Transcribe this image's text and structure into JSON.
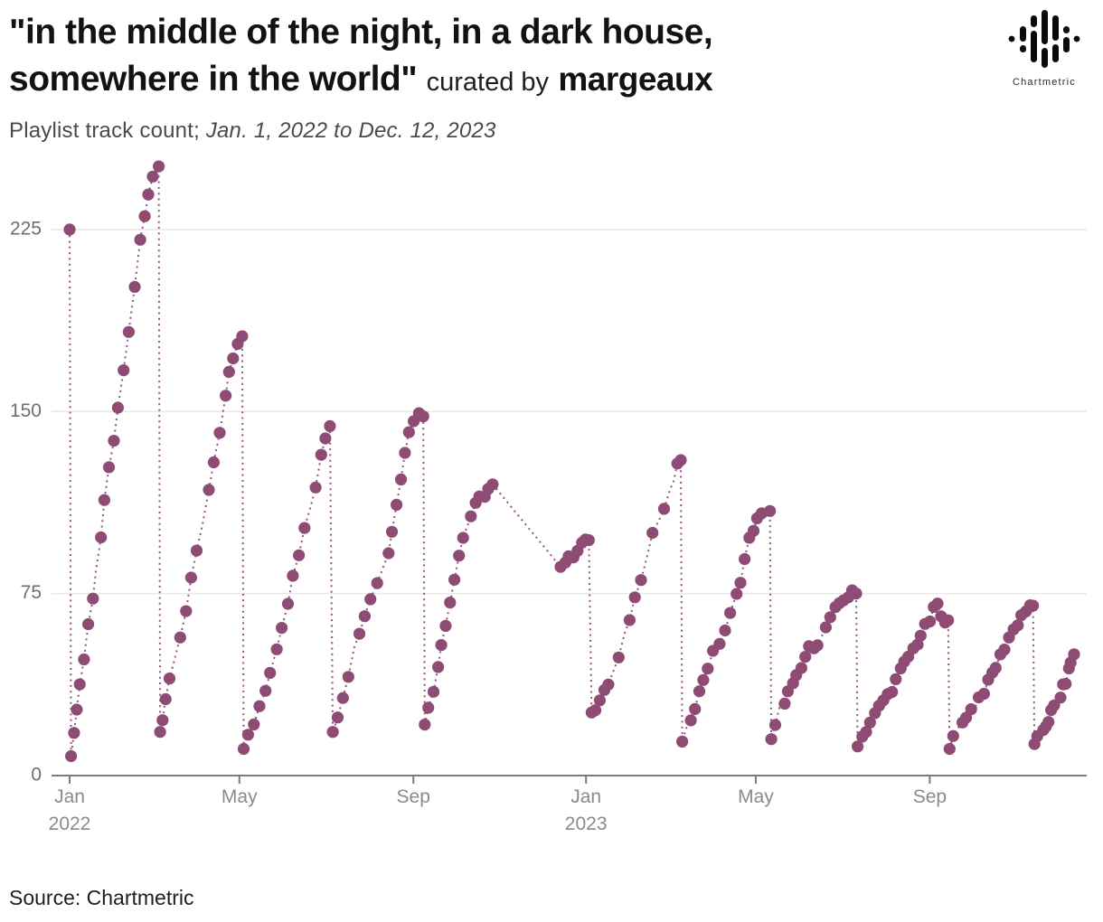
{
  "header": {
    "title_line1": "\"in the middle of the night, in a dark house,",
    "title_line2": "somewhere in the world\"",
    "curated_by": "curated by",
    "curator": "margeaux",
    "subtitle_plain": "Playlist track count; ",
    "subtitle_dates": "Jan. 1, 2022 to Dec. 12, 2023"
  },
  "logo": {
    "label": "Chartmetric"
  },
  "footer": {
    "source": "Source: Chartmetric"
  },
  "chart_data": {
    "type": "scatter",
    "title": "Playlist track count",
    "date_range": [
      "2022-01-01",
      "2023-12-12"
    ],
    "x_unit": "days_since_2022-01-01",
    "point_color": "#8e4c74",
    "grid_color": "#e9e9e9",
    "axis_color": "#7b7b7b",
    "ytick_color": "#6e6e6e",
    "xtick_color": "#8b8b8b",
    "ylim": [
      0,
      255
    ],
    "yticks": [
      0,
      75,
      150,
      225
    ],
    "xticks": [
      {
        "label": "Jan",
        "sub": "2022",
        "day": 0
      },
      {
        "label": "May",
        "day": 120
      },
      {
        "label": "Sep",
        "day": 243
      },
      {
        "label": "Jan",
        "sub": "2023",
        "day": 365
      },
      {
        "label": "May",
        "day": 485
      },
      {
        "label": "Sep",
        "day": 608
      }
    ],
    "segments": [
      {
        "points": [
          [
            0,
            225
          ]
        ]
      },
      {
        "points": [
          [
            1,
            8
          ],
          [
            3,
            19
          ],
          [
            5,
            27
          ],
          [
            7,
            38
          ],
          [
            10,
            48
          ],
          [
            13,
            62
          ],
          [
            16,
            74
          ],
          [
            19,
            85
          ],
          [
            22,
            98
          ],
          [
            25,
            112
          ],
          [
            28,
            126
          ],
          [
            31,
            139
          ],
          [
            34,
            150
          ],
          [
            38,
            166
          ],
          [
            42,
            183
          ],
          [
            46,
            200
          ],
          [
            50,
            221
          ],
          [
            53,
            230
          ],
          [
            56,
            240
          ],
          [
            59,
            246
          ],
          [
            61,
            249
          ],
          [
            63,
            251
          ]
        ]
      },
      {
        "points": [
          [
            64,
            18
          ],
          [
            66,
            24
          ],
          [
            68,
            32
          ],
          [
            71,
            40
          ],
          [
            74,
            48
          ],
          [
            78,
            58
          ],
          [
            82,
            68
          ],
          [
            86,
            80
          ],
          [
            90,
            92
          ],
          [
            94,
            104
          ],
          [
            98,
            118
          ],
          [
            102,
            130
          ],
          [
            106,
            141
          ],
          [
            110,
            155
          ],
          [
            113,
            165
          ],
          [
            116,
            172
          ],
          [
            119,
            177
          ],
          [
            122,
            181
          ]
        ]
      },
      {
        "points": [
          [
            123,
            11
          ],
          [
            126,
            17
          ],
          [
            130,
            22
          ],
          [
            134,
            28
          ],
          [
            138,
            34
          ],
          [
            142,
            43
          ],
          [
            146,
            52
          ],
          [
            150,
            62
          ],
          [
            154,
            72
          ],
          [
            158,
            83
          ],
          [
            162,
            92
          ],
          [
            166,
            101
          ],
          [
            170,
            110
          ],
          [
            174,
            119
          ],
          [
            178,
            131
          ],
          [
            181,
            139
          ],
          [
            184,
            144
          ]
        ]
      },
      {
        "points": [
          [
            186,
            18
          ],
          [
            189,
            25
          ],
          [
            193,
            33
          ],
          [
            197,
            42
          ],
          [
            201,
            52
          ],
          [
            205,
            60
          ],
          [
            209,
            67
          ],
          [
            213,
            74
          ],
          [
            217,
            79
          ],
          [
            221,
            85
          ],
          [
            225,
            92
          ],
          [
            228,
            101
          ],
          [
            231,
            112
          ],
          [
            234,
            122
          ],
          [
            237,
            134
          ],
          [
            240,
            143
          ],
          [
            243,
            147
          ],
          [
            247,
            149
          ],
          [
            250,
            148
          ]
        ]
      },
      {
        "points": [
          [
            251,
            21
          ],
          [
            254,
            29
          ],
          [
            257,
            36
          ],
          [
            260,
            44
          ],
          [
            263,
            54
          ],
          [
            266,
            63
          ],
          [
            269,
            72
          ],
          [
            272,
            82
          ],
          [
            275,
            91
          ],
          [
            278,
            98
          ],
          [
            281,
            103
          ],
          [
            284,
            107
          ],
          [
            287,
            111
          ],
          [
            290,
            114
          ],
          [
            293,
            116
          ],
          [
            296,
            118
          ],
          [
            299,
            120
          ]
        ]
      },
      {
        "points": [
          [
            347,
            86
          ],
          [
            350,
            87
          ],
          [
            353,
            89
          ],
          [
            356,
            91
          ],
          [
            359,
            94
          ],
          [
            362,
            96
          ],
          [
            365,
            98
          ],
          [
            367,
            97
          ]
        ]
      },
      {
        "points": [
          [
            369,
            26
          ],
          [
            372,
            28
          ],
          [
            375,
            31
          ],
          [
            378,
            34
          ],
          [
            381,
            38
          ],
          [
            384,
            42
          ],
          [
            388,
            48
          ],
          [
            392,
            57
          ],
          [
            396,
            65
          ],
          [
            400,
            73
          ],
          [
            404,
            82
          ],
          [
            408,
            92
          ],
          [
            412,
            100
          ],
          [
            416,
            105
          ],
          [
            420,
            110
          ],
          [
            424,
            116
          ],
          [
            427,
            122
          ],
          [
            430,
            127
          ],
          [
            432,
            130
          ]
        ]
      },
      {
        "points": [
          [
            433,
            14
          ],
          [
            436,
            19
          ],
          [
            439,
            24
          ],
          [
            442,
            29
          ],
          [
            445,
            34
          ],
          [
            448,
            40
          ],
          [
            451,
            45
          ],
          [
            455,
            50
          ],
          [
            459,
            55
          ],
          [
            463,
            60
          ],
          [
            467,
            66
          ],
          [
            471,
            74
          ],
          [
            474,
            81
          ],
          [
            477,
            89
          ],
          [
            480,
            97
          ],
          [
            483,
            102
          ],
          [
            486,
            105
          ],
          [
            489,
            107
          ],
          [
            492,
            108
          ],
          [
            495,
            109
          ]
        ]
      },
      {
        "points": [
          [
            496,
            15
          ],
          [
            499,
            20
          ],
          [
            502,
            27
          ],
          [
            505,
            31
          ],
          [
            508,
            34
          ],
          [
            511,
            37
          ],
          [
            514,
            40
          ],
          [
            517,
            44
          ],
          [
            520,
            49
          ],
          [
            523,
            52
          ],
          [
            526,
            54
          ],
          [
            529,
            55
          ],
          [
            532,
            57
          ],
          [
            535,
            61
          ],
          [
            538,
            64
          ],
          [
            541,
            68
          ],
          [
            544,
            71
          ],
          [
            547,
            73
          ],
          [
            550,
            74
          ],
          [
            553,
            75
          ],
          [
            556,
            75
          ]
        ]
      },
      {
        "points": [
          [
            557,
            12
          ],
          [
            560,
            16
          ],
          [
            563,
            19
          ],
          [
            566,
            22
          ],
          [
            569,
            25
          ],
          [
            572,
            28
          ],
          [
            575,
            31
          ],
          [
            578,
            33
          ],
          [
            581,
            36
          ],
          [
            584,
            39
          ],
          [
            587,
            43
          ],
          [
            590,
            46
          ],
          [
            593,
            49
          ],
          [
            596,
            52
          ],
          [
            599,
            55
          ],
          [
            602,
            58
          ],
          [
            605,
            61
          ],
          [
            608,
            64
          ],
          [
            611,
            68
          ],
          [
            613,
            71
          ],
          [
            616,
            65
          ],
          [
            619,
            62
          ],
          [
            621,
            64
          ]
        ]
      },
      {
        "points": [
          [
            622,
            11
          ],
          [
            625,
            15
          ],
          [
            628,
            19
          ],
          [
            631,
            22
          ],
          [
            634,
            25
          ],
          [
            637,
            27
          ],
          [
            640,
            29
          ],
          [
            643,
            32
          ],
          [
            646,
            35
          ],
          [
            649,
            38
          ],
          [
            652,
            42
          ],
          [
            655,
            45
          ],
          [
            658,
            49
          ],
          [
            661,
            53
          ],
          [
            664,
            57
          ],
          [
            667,
            60
          ],
          [
            670,
            63
          ],
          [
            673,
            66
          ],
          [
            676,
            68
          ],
          [
            679,
            69
          ],
          [
            681,
            70
          ]
        ]
      },
      {
        "points": [
          [
            682,
            13
          ],
          [
            684,
            15
          ],
          [
            686,
            17
          ],
          [
            688,
            19
          ],
          [
            690,
            21
          ],
          [
            692,
            23
          ],
          [
            694,
            26
          ],
          [
            696,
            28
          ],
          [
            698,
            31
          ],
          [
            700,
            33
          ],
          [
            702,
            36
          ],
          [
            704,
            39
          ],
          [
            706,
            43
          ],
          [
            708,
            47
          ],
          [
            710,
            50
          ]
        ]
      }
    ]
  }
}
